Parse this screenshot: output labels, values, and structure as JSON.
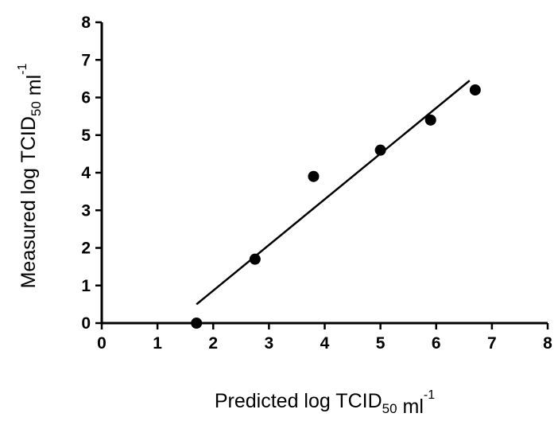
{
  "chart_data": {
    "type": "scatter",
    "title": "",
    "xlabel": {
      "parts": [
        {
          "text": "Predicted log TCID",
          "style": "normal"
        },
        {
          "text": "50",
          "style": "sub"
        },
        {
          "text": " ml",
          "style": "normal"
        },
        {
          "text": "-1",
          "style": "sup"
        }
      ]
    },
    "ylabel": {
      "parts": [
        {
          "text": "Measured log TCID",
          "style": "normal"
        },
        {
          "text": "50",
          "style": "sub"
        },
        {
          "text": " ml",
          "style": "normal"
        },
        {
          "text": "-1",
          "style": "sup"
        }
      ]
    },
    "xlim": [
      0,
      8
    ],
    "ylim": [
      0,
      8
    ],
    "xticks": [
      "0",
      "1",
      "2",
      "3",
      "4",
      "5",
      "6",
      "7",
      "8"
    ],
    "yticks": [
      "0",
      "1",
      "2",
      "3",
      "4",
      "5",
      "6",
      "7",
      "8"
    ],
    "grid": false,
    "legend": "none",
    "series": [
      {
        "kind": "points",
        "color": "#000000",
        "points": [
          {
            "x": 1.7,
            "y": 0.0
          },
          {
            "x": 2.75,
            "y": 1.7
          },
          {
            "x": 3.8,
            "y": 3.9
          },
          {
            "x": 5.0,
            "y": 4.6
          },
          {
            "x": 5.9,
            "y": 5.4
          },
          {
            "x": 6.7,
            "y": 6.2
          }
        ]
      },
      {
        "kind": "fit-line",
        "color": "#000000",
        "points": [
          {
            "x": 1.7,
            "y": 0.5
          },
          {
            "x": 6.6,
            "y": 6.45
          }
        ]
      }
    ]
  }
}
